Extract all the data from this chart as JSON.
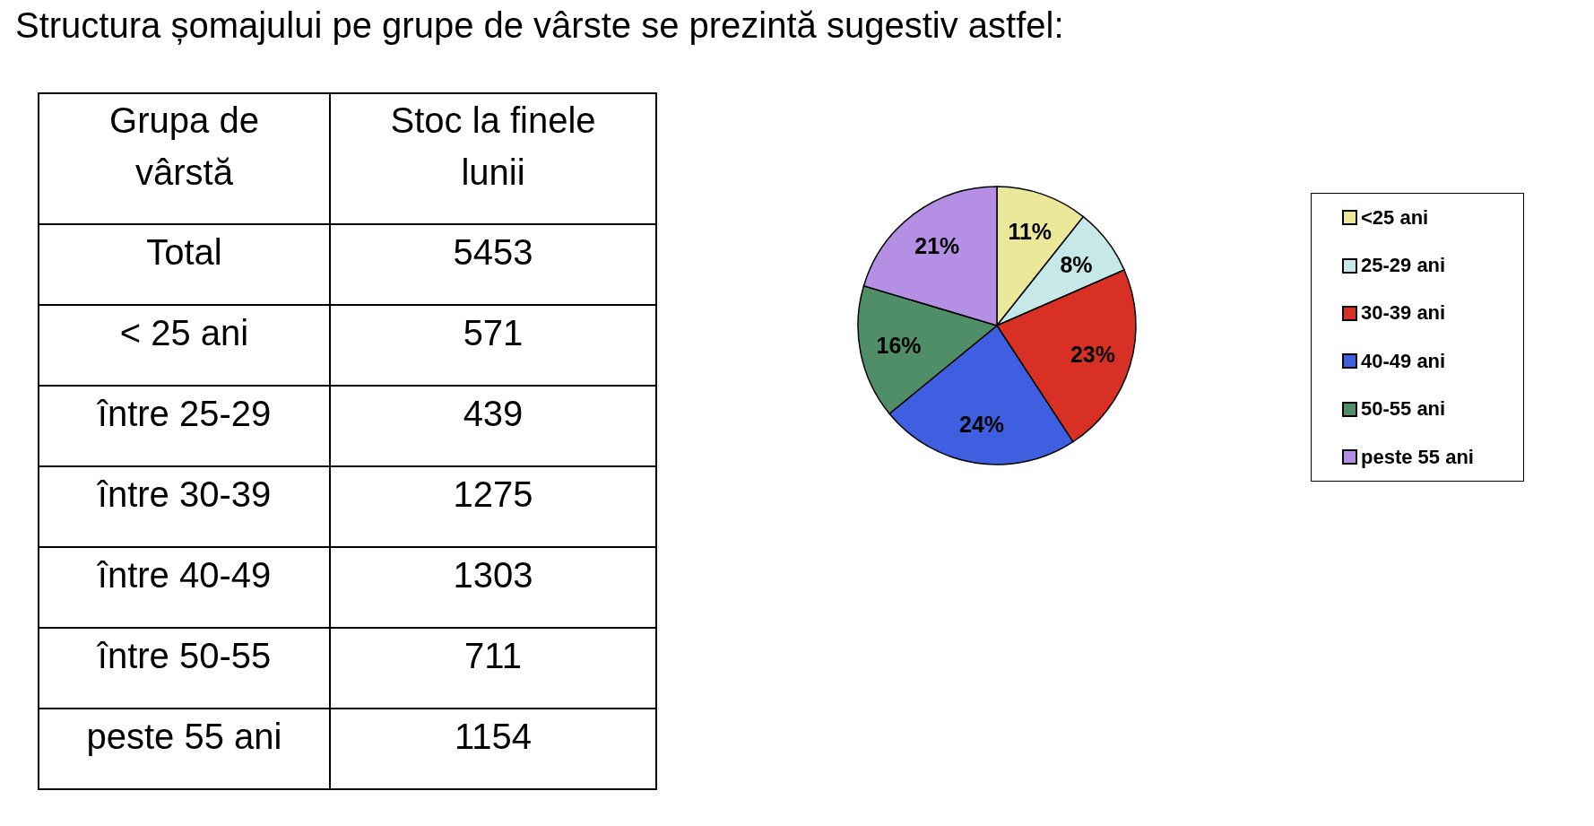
{
  "chart_data": [
    {
      "type": "other",
      "title": "Structura șomajului pe grupe de vârste se prezintă sugestiv astfel:",
      "annotations": [
        "Grupa de vârstă",
        "Stoc la finele lunii",
        "Total",
        "5453",
        "< 25 ani",
        "571",
        "între 25-29",
        "439",
        "între 30-39",
        "1275",
        "între 40-49",
        "1303",
        "între 50-55",
        "711",
        "peste 55 ani",
        "1154"
      ]
    },
    {
      "type": "pie",
      "categories": [
        "<25 ani",
        "25-29 ani",
        "30-39 ani",
        "40-49 ani",
        "50-55 ani",
        "peste 55 ani"
      ],
      "values": [
        11,
        8,
        23,
        24,
        16,
        21
      ],
      "colors": [
        "#ebe89a",
        "#c6e8e8",
        "#d83024",
        "#3e60e0",
        "#4f8e67",
        "#b48fe3"
      ],
      "value_labels": [
        "11%",
        "8%",
        "23%",
        "24%",
        "16%",
        "21%"
      ],
      "legend": "right"
    }
  ]
}
